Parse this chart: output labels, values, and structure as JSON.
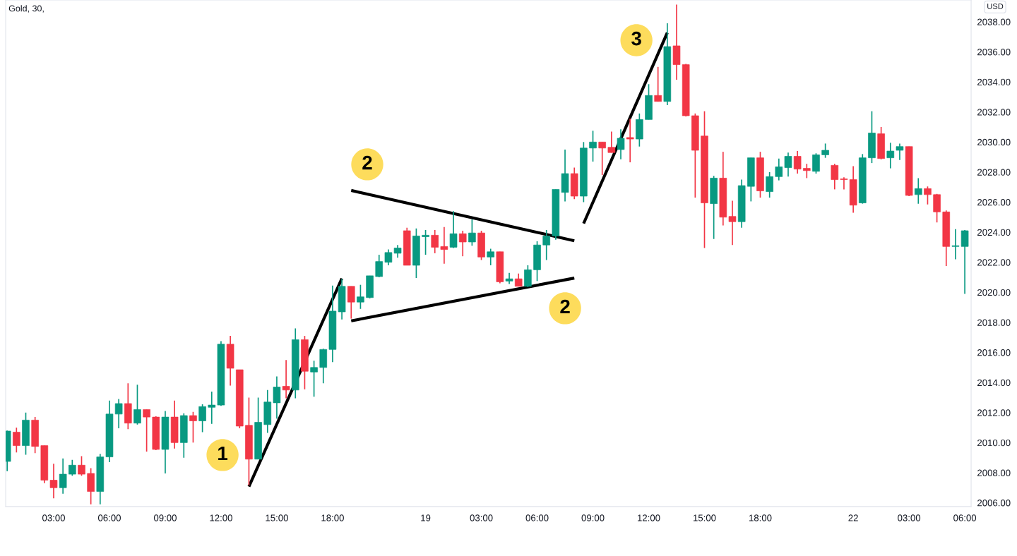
{
  "chart_data": {
    "type": "candlestick",
    "title": "Gold, 30,",
    "categories": [
      null,
      null,
      null,
      null,
      null,
      "03:00",
      null,
      null,
      null,
      null,
      null,
      "06:00",
      null,
      null,
      null,
      null,
      null,
      "09:00",
      null,
      null,
      null,
      null,
      null,
      "12:00",
      null,
      null,
      null,
      null,
      null,
      "15:00",
      null,
      null,
      null,
      null,
      null,
      "18:00",
      null,
      null,
      null,
      null,
      null,
      null,
      null,
      null,
      null,
      "19",
      null,
      null,
      null,
      null,
      null,
      "03:00",
      null,
      null,
      null,
      null,
      null,
      "06:00",
      null,
      null,
      null,
      null,
      null,
      "09:00",
      null,
      null,
      null,
      null,
      null,
      "12:00",
      null,
      null,
      null,
      null,
      null,
      "15:00",
      null,
      null,
      null,
      null,
      null,
      "18:00",
      null,
      null,
      null,
      null,
      null,
      null,
      null,
      null,
      null,
      "22",
      null,
      null,
      null,
      null,
      null,
      "03:00",
      null,
      null,
      null,
      null,
      null,
      "06:00"
    ],
    "ohlc": [
      [
        2008.75,
        2010.8,
        2008.1,
        2010.77
      ],
      [
        2010.7,
        2011.0,
        2009.35,
        2009.8
      ],
      [
        2009.8,
        2012.0,
        2009.2,
        2011.5
      ],
      [
        2011.5,
        2011.7,
        2009.3,
        2009.75
      ],
      [
        2009.8,
        2009.8,
        2007.3,
        2007.5
      ],
      [
        2007.5,
        2008.6,
        2006.3,
        2007.0
      ],
      [
        2007.0,
        2008.95,
        2006.6,
        2007.9
      ],
      [
        2007.9,
        2008.85,
        2007.8,
        2008.5
      ],
      [
        2008.5,
        2009.1,
        2007.8,
        2007.9
      ],
      [
        2007.95,
        2008.3,
        2005.9,
        2006.75
      ],
      [
        2006.75,
        2009.25,
        2005.9,
        2009.05
      ],
      [
        2009.05,
        2012.8,
        2008.7,
        2011.9
      ],
      [
        2011.9,
        2012.9,
        2010.95,
        2012.6
      ],
      [
        2012.6,
        2013.95,
        2010.9,
        2011.3
      ],
      [
        2011.3,
        2013.85,
        2011.2,
        2012.2
      ],
      [
        2012.2,
        2012.2,
        2009.4,
        2011.7
      ],
      [
        2011.7,
        2011.75,
        2009.5,
        2009.55
      ],
      [
        2009.55,
        2012.1,
        2007.95,
        2011.7
      ],
      [
        2011.7,
        2012.8,
        2009.6,
        2010.0
      ],
      [
        2010.0,
        2011.95,
        2009.0,
        2011.8
      ],
      [
        2011.8,
        2012.05,
        2010.0,
        2011.45
      ],
      [
        2011.45,
        2012.55,
        2010.7,
        2012.4
      ],
      [
        2012.35,
        2013.4,
        2011.25,
        2012.5
      ],
      [
        2012.5,
        2016.75,
        2012.45,
        2016.55
      ],
      [
        2016.55,
        2017.1,
        2013.8,
        2014.95
      ],
      [
        2014.85,
        2014.85,
        2010.95,
        2011.1
      ],
      [
        2011.15,
        2013.0,
        2007.15,
        2008.9
      ],
      [
        2008.9,
        2013.0,
        2008.9,
        2011.35
      ],
      [
        2011.2,
        2013.5,
        2010.65,
        2012.7
      ],
      [
        2012.65,
        2014.4,
        2011.6,
        2013.7
      ],
      [
        2013.75,
        2015.5,
        2012.95,
        2013.5
      ],
      [
        2013.5,
        2017.6,
        2012.95,
        2016.85
      ],
      [
        2016.85,
        2017.1,
        2013.55,
        2014.75
      ],
      [
        2014.7,
        2015.45,
        2013.05,
        2015.0
      ],
      [
        2015.0,
        2016.25,
        2013.95,
        2016.2
      ],
      [
        2016.2,
        2020.45,
        2015.35,
        2018.75
      ],
      [
        2018.7,
        2020.9,
        2018.2,
        2020.4
      ],
      [
        2020.4,
        2020.4,
        2018.25,
        2019.35
      ],
      [
        2019.35,
        2020.5,
        2018.9,
        2019.7
      ],
      [
        2019.65,
        2021.1,
        2019.6,
        2021.1
      ],
      [
        2021.05,
        2022.5,
        2021.0,
        2022.05
      ],
      [
        2022.0,
        2022.85,
        2021.8,
        2022.65
      ],
      [
        2022.6,
        2023.15,
        2022.3,
        2022.95
      ],
      [
        2024.1,
        2024.3,
        2021.8,
        2021.8
      ],
      [
        2021.8,
        2024.25,
        2020.95,
        2023.75
      ],
      [
        2023.7,
        2024.15,
        2022.5,
        2023.8
      ],
      [
        2023.8,
        2024.15,
        2022.6,
        2023.0
      ],
      [
        2023.05,
        2024.35,
        2021.9,
        2022.85
      ],
      [
        2023.0,
        2025.4,
        2022.95,
        2023.9
      ],
      [
        2023.9,
        2024.1,
        2022.4,
        2023.35
      ],
      [
        2023.35,
        2024.85,
        2023.1,
        2023.95
      ],
      [
        2023.95,
        2024.1,
        2022.15,
        2022.35
      ],
      [
        2022.35,
        2022.9,
        2021.8,
        2022.7
      ],
      [
        2022.7,
        2022.7,
        2020.6,
        2020.7
      ],
      [
        2020.75,
        2021.3,
        2020.55,
        2020.9
      ],
      [
        2020.9,
        2021.25,
        2020.4,
        2020.4
      ],
      [
        2020.4,
        2021.8,
        2020.35,
        2021.5
      ],
      [
        2021.5,
        2023.4,
        2020.75,
        2023.15
      ],
      [
        2023.15,
        2024.15,
        2022.15,
        2023.75
      ],
      [
        2023.75,
        2026.85,
        2023.5,
        2026.85
      ],
      [
        2026.65,
        2029.5,
        2026.05,
        2027.9
      ],
      [
        2027.9,
        2028.3,
        2026.2,
        2026.4
      ],
      [
        2026.4,
        2030.0,
        2026.0,
        2029.6
      ],
      [
        2029.6,
        2030.75,
        2028.7,
        2030.0
      ],
      [
        2030.0,
        2030.0,
        2027.8,
        2029.6
      ],
      [
        2029.65,
        2030.7,
        2029.3,
        2029.3
      ],
      [
        2029.5,
        2030.85,
        2028.85,
        2030.25
      ],
      [
        2030.3,
        2031.55,
        2028.65,
        2030.2
      ],
      [
        2030.2,
        2031.9,
        2029.7,
        2031.5
      ],
      [
        2031.5,
        2033.85,
        2031.5,
        2033.1
      ],
      [
        2033.1,
        2035.0,
        2032.7,
        2032.7
      ],
      [
        2032.7,
        2037.9,
        2032.45,
        2036.35
      ],
      [
        2036.4,
        2039.15,
        2034.15,
        2035.15
      ],
      [
        2035.15,
        2035.2,
        2031.7,
        2031.75
      ],
      [
        2031.75,
        2031.9,
        2026.3,
        2029.45
      ],
      [
        2030.4,
        2032.05,
        2022.95,
        2025.95
      ],
      [
        2025.9,
        2027.75,
        2023.55,
        2027.6
      ],
      [
        2027.6,
        2029.35,
        2024.45,
        2025.0
      ],
      [
        2025.05,
        2026.1,
        2023.15,
        2024.7
      ],
      [
        2024.7,
        2027.5,
        2024.3,
        2027.1
      ],
      [
        2027.05,
        2028.95,
        2026.05,
        2028.95
      ],
      [
        2028.95,
        2029.35,
        2026.3,
        2026.75
      ],
      [
        2026.7,
        2028.0,
        2026.3,
        2027.7
      ],
      [
        2027.7,
        2028.9,
        2027.45,
        2028.35
      ],
      [
        2028.3,
        2029.3,
        2027.7,
        2029.05
      ],
      [
        2029.05,
        2029.4,
        2027.9,
        2028.2
      ],
      [
        2028.25,
        2028.55,
        2027.6,
        2028.1
      ],
      [
        2028.05,
        2029.25,
        2027.9,
        2029.15
      ],
      [
        2029.15,
        2029.9,
        2028.95,
        2029.45
      ],
      [
        2028.45,
        2028.55,
        2026.85,
        2027.5
      ],
      [
        2027.55,
        2027.65,
        2026.85,
        2027.5
      ],
      [
        2027.5,
        2028.4,
        2025.3,
        2025.8
      ],
      [
        2025.95,
        2029.2,
        2025.9,
        2028.95
      ],
      [
        2028.95,
        2032.05,
        2028.6,
        2030.6
      ],
      [
        2030.55,
        2031.0,
        2028.85,
        2028.9
      ],
      [
        2028.95,
        2029.95,
        2028.25,
        2029.4
      ],
      [
        2029.45,
        2029.9,
        2028.8,
        2029.7
      ],
      [
        2029.7,
        2029.7,
        2026.4,
        2026.45
      ],
      [
        2026.5,
        2027.6,
        2025.9,
        2026.9
      ],
      [
        2026.9,
        2027.05,
        2025.85,
        2026.5
      ],
      [
        2026.5,
        2026.55,
        2024.65,
        2025.35
      ],
      [
        2025.35,
        2025.45,
        2021.75,
        2023.05
      ],
      [
        2023.05,
        2024.2,
        2022.2,
        2023.1
      ],
      [
        2023.05,
        2024.15,
        2019.9,
        2024.1
      ]
    ],
    "colors": [
      "#089981",
      "#f23645",
      "#089981",
      "#f23645",
      "#f23645",
      "#f23645",
      "#089981",
      "#089981",
      "#f23645",
      "#f23645",
      "#089981",
      "#089981",
      "#089981",
      "#f23645",
      "#089981",
      "#f23645",
      "#f23645",
      "#089981",
      "#f23645",
      "#089981",
      "#f23645",
      "#089981",
      "#089981",
      "#089981",
      "#f23645",
      "#f23645",
      "#f23645",
      "#089981",
      "#089981",
      "#089981",
      "#f23645",
      "#089981",
      "#f23645",
      "#089981",
      "#089981",
      "#089981",
      "#089981",
      "#f23645",
      "#089981",
      "#089981",
      "#089981",
      "#089981",
      "#089981",
      "#f23645",
      "#089981",
      "#089981",
      "#f23645",
      "#f23645",
      "#089981",
      "#f23645",
      "#089981",
      "#f23645",
      "#089981",
      "#f23645",
      "#089981",
      "#f23645",
      "#089981",
      "#089981",
      "#089981",
      "#089981",
      "#089981",
      "#f23645",
      "#089981",
      "#089981",
      "#f23645",
      "#f23645",
      "#089981",
      "#f23645",
      "#089981",
      "#089981",
      "#f23645",
      "#089981",
      "#f23645",
      "#f23645",
      "#f23645",
      "#f23645",
      "#089981",
      "#f23645",
      "#f23645",
      "#089981",
      "#089981",
      "#f23645",
      "#089981",
      "#089981",
      "#089981",
      "#f23645",
      "#f23645",
      "#089981",
      "#089981",
      "#f23645",
      "#f23645",
      "#f23645",
      "#089981",
      "#089981",
      "#f23645",
      "#089981",
      "#089981",
      "#f23645",
      "#089981",
      "#f23645",
      "#f23645",
      "#f23645",
      "#089981",
      "#089981"
    ],
    "series": [
      {
        "type": "line",
        "color": "#000000",
        "values": [
          null,
          null,
          null,
          null,
          null,
          null,
          null,
          null,
          null,
          null,
          null,
          null,
          null,
          null,
          null,
          null,
          null,
          null,
          null,
          null,
          null,
          null,
          null,
          null,
          null,
          null,
          2007.08,
          null,
          null,
          null,
          null,
          null,
          null,
          null,
          null,
          null,
          2020.92,
          null,
          null,
          null,
          null,
          null,
          null,
          null,
          null,
          null,
          null,
          null,
          null,
          null,
          null,
          null,
          null,
          null,
          null,
          null,
          null,
          null,
          null,
          null,
          null,
          null,
          null,
          null,
          null,
          null,
          null,
          null,
          null,
          null,
          null,
          null,
          null,
          null,
          null,
          null,
          null,
          null,
          null,
          null,
          null,
          null,
          null,
          null,
          null,
          null,
          null,
          null,
          null,
          null,
          null,
          null,
          null,
          null,
          null,
          null,
          null,
          null,
          null,
          null,
          null,
          null,
          null,
          null
        ]
      },
      {
        "type": "line",
        "color": "#000000",
        "values": [
          null,
          null,
          null,
          null,
          null,
          null,
          null,
          null,
          null,
          null,
          null,
          null,
          null,
          null,
          null,
          null,
          null,
          null,
          null,
          null,
          null,
          null,
          null,
          null,
          null,
          null,
          null,
          null,
          null,
          null,
          null,
          null,
          null,
          null,
          null,
          null,
          null,
          2026.78,
          null,
          null,
          null,
          null,
          null,
          null,
          null,
          null,
          null,
          null,
          null,
          null,
          null,
          null,
          null,
          null,
          null,
          null,
          null,
          null,
          null,
          null,
          null,
          2023.43,
          null,
          null,
          null,
          null,
          null,
          null,
          null,
          null,
          null,
          null,
          null,
          null,
          null,
          null,
          null,
          null,
          null,
          null,
          null,
          null,
          null,
          null,
          null,
          null,
          null,
          null,
          null,
          null,
          null,
          null,
          null,
          null,
          null,
          null,
          null,
          null,
          null,
          null,
          null,
          null,
          null,
          null
        ]
      },
      {
        "type": "line",
        "color": "#000000",
        "values": [
          null,
          null,
          null,
          null,
          null,
          null,
          null,
          null,
          null,
          null,
          null,
          null,
          null,
          null,
          null,
          null,
          null,
          null,
          null,
          null,
          null,
          null,
          null,
          null,
          null,
          null,
          null,
          null,
          null,
          null,
          null,
          null,
          null,
          null,
          null,
          null,
          null,
          2018.1,
          null,
          null,
          null,
          null,
          null,
          null,
          null,
          null,
          null,
          null,
          null,
          null,
          null,
          null,
          null,
          null,
          null,
          null,
          null,
          null,
          null,
          null,
          null,
          2020.95,
          null,
          null,
          null,
          null,
          null,
          null,
          null,
          null,
          null,
          null,
          null,
          null,
          null,
          null,
          null,
          null,
          null,
          null,
          null,
          null,
          null,
          null,
          null,
          null,
          null,
          null,
          null,
          null,
          null,
          null,
          null,
          null,
          null,
          null,
          null,
          null,
          null,
          null,
          null,
          null,
          null,
          null
        ]
      },
      {
        "type": "line",
        "color": "#000000",
        "values": [
          null,
          null,
          null,
          null,
          null,
          null,
          null,
          null,
          null,
          null,
          null,
          null,
          null,
          null,
          null,
          null,
          null,
          null,
          null,
          null,
          null,
          null,
          null,
          null,
          null,
          null,
          null,
          null,
          null,
          null,
          null,
          null,
          null,
          null,
          null,
          null,
          null,
          null,
          null,
          null,
          null,
          null,
          null,
          null,
          null,
          null,
          null,
          null,
          null,
          null,
          null,
          null,
          null,
          null,
          null,
          null,
          null,
          null,
          null,
          null,
          null,
          null,
          2024.58,
          null,
          null,
          null,
          null,
          null,
          null,
          null,
          null,
          2037.27,
          null,
          null,
          null,
          null,
          null,
          null,
          null,
          null,
          null,
          null,
          null,
          null,
          null,
          null,
          null,
          null,
          null,
          null,
          null,
          null,
          null,
          null,
          null,
          null,
          null,
          null,
          null,
          null,
          null,
          null,
          null,
          null
        ]
      }
    ],
    "annotations": [
      "1",
      "2",
      "2",
      "3",
      "USD"
    ],
    "ylim": [
      2005.75,
      2039.45
    ],
    "yticks": [
      {
        "value": 2006,
        "label": "2006.00"
      },
      {
        "value": 2008,
        "label": "2008.00"
      },
      {
        "value": 2010,
        "label": "2010.00"
      },
      {
        "value": 2012,
        "label": "2012.00"
      },
      {
        "value": 2014,
        "label": "2014.00"
      },
      {
        "value": 2016,
        "label": "2016.00"
      },
      {
        "value": 2018,
        "label": "2018.00"
      },
      {
        "value": 2020,
        "label": "2020.00"
      },
      {
        "value": 2022,
        "label": "2022.00"
      },
      {
        "value": 2024,
        "label": "2024.00"
      },
      {
        "value": 2026,
        "label": "2026.00"
      },
      {
        "value": 2028,
        "label": "2028.00"
      },
      {
        "value": 2030,
        "label": "2030.00"
      },
      {
        "value": 2032,
        "label": "2032.00"
      },
      {
        "value": 2034,
        "label": "2034.00"
      },
      {
        "value": 2036,
        "label": "2036.00"
      },
      {
        "value": 2038,
        "label": "2038.00"
      }
    ],
    "grid": false
  }
}
